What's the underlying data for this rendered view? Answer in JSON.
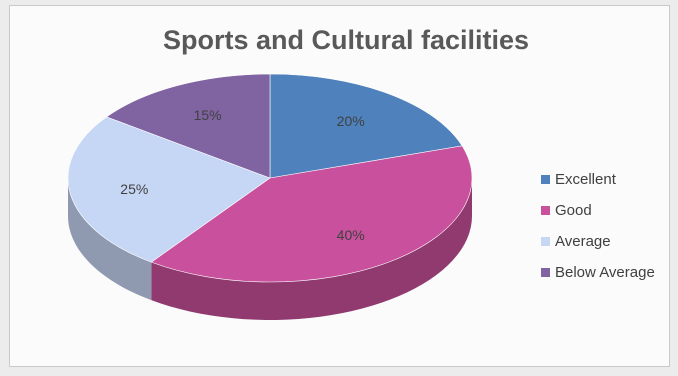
{
  "chart_data": {
    "type": "pie",
    "title": "Sports and Cultural facilities",
    "categories": [
      "Excellent",
      "Good",
      "Average",
      "Below Average"
    ],
    "values": [
      20,
      40,
      25,
      15
    ],
    "data_labels": [
      "20%",
      "40%",
      "25%",
      "15%"
    ],
    "colors": [
      "#4f81bd",
      "#c8509c",
      "#c6d6f5",
      "#8064a2"
    ],
    "legend": {
      "position": "right",
      "entries": [
        "Excellent",
        "Good",
        "Average",
        "Below Average"
      ]
    },
    "style": "3d"
  }
}
